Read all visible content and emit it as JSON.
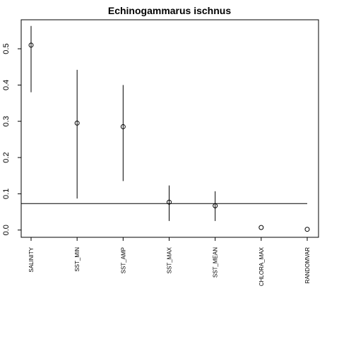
{
  "chart_data": {
    "type": "scatter",
    "title": "Echinogammarus ischnus",
    "xlabel": "",
    "ylabel": "",
    "categories": [
      "SALINITY",
      "SST_MIN",
      "SST_AMP",
      "SST_MAX",
      "SST_MEAN",
      "CHLORA_MAX",
      "RANDOMVAR"
    ],
    "values": [
      0.51,
      0.295,
      0.285,
      0.077,
      0.067,
      0.007,
      0.002
    ],
    "error_low": [
      0.38,
      0.087,
      0.135,
      0.025,
      0.025,
      null,
      null
    ],
    "error_high": [
      0.563,
      0.442,
      0.4,
      0.123,
      0.107,
      null,
      null
    ],
    "reference_line": 0.073,
    "ylim": [
      -0.02,
      0.58
    ],
    "yticks": [
      "0.0",
      "0.1",
      "0.2",
      "0.3",
      "0.4",
      "0.5"
    ],
    "grid": false,
    "legend": "none"
  }
}
